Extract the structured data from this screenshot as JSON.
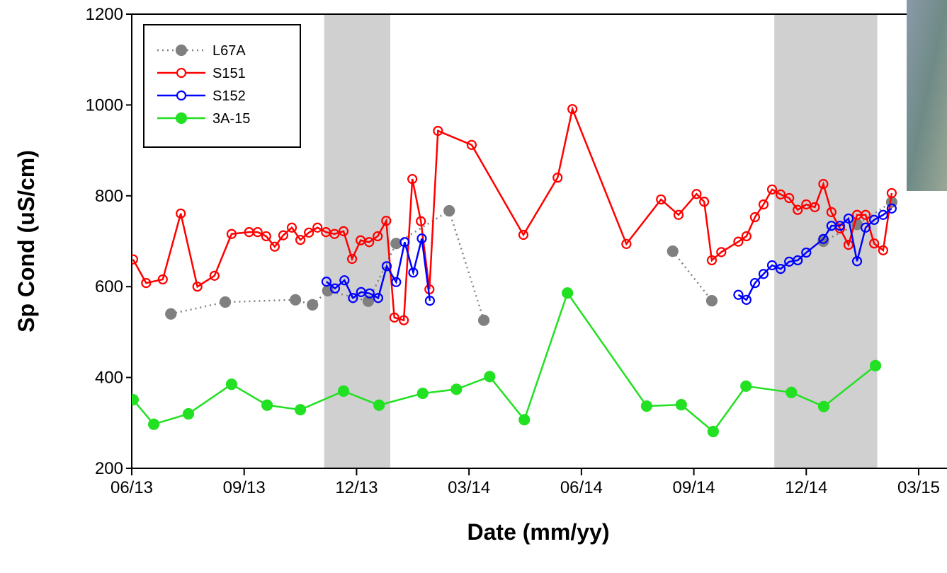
{
  "chart_data": {
    "type": "line",
    "x_label": "Date (mm/yy)",
    "y_label": "Sp Cond (uS/cm)",
    "xlim": [
      2013.417,
      2015.23
    ],
    "ylim": [
      200,
      1200
    ],
    "xticks": [
      {
        "value": 2013.417,
        "label": "06/13"
      },
      {
        "value": 2013.667,
        "label": "09/13"
      },
      {
        "value": 2013.917,
        "label": "12/13"
      },
      {
        "value": 2014.167,
        "label": "03/14"
      },
      {
        "value": 2014.417,
        "label": "06/14"
      },
      {
        "value": 2014.667,
        "label": "09/14"
      },
      {
        "value": 2014.917,
        "label": "12/14"
      },
      {
        "value": 2015.167,
        "label": "03/15"
      }
    ],
    "yticks": [
      200,
      400,
      600,
      800,
      1000,
      1200
    ],
    "shaded_regions": [
      [
        2013.845,
        2013.992
      ],
      [
        2014.846,
        2015.075
      ]
    ],
    "shade_color": "#d0d0d0",
    "series": [
      {
        "name": "L67A",
        "color": "#808080",
        "line_style": "dotted",
        "marker": "filled",
        "x": [
          2013.504,
          2013.625,
          2013.781,
          2013.819,
          2013.853,
          2013.943,
          2014.005,
          2014.123,
          2014.2,
          null,
          2014.62,
          2014.707,
          null,
          2014.955,
          2015.03,
          2015.107
        ],
        "values": [
          540,
          566,
          571,
          560,
          591,
          568,
          695,
          767,
          526,
          null,
          678,
          569,
          null,
          700,
          737,
          786
        ]
      },
      {
        "name": "S151",
        "color": "#ff0000",
        "line_style": "solid",
        "marker": "hollow",
        "x": [
          2013.42,
          2013.449,
          2013.486,
          2013.526,
          2013.563,
          2013.601,
          2013.639,
          2013.678,
          2013.697,
          2013.716,
          2013.735,
          2013.754,
          2013.773,
          2013.792,
          2013.811,
          2013.83,
          2013.849,
          2013.868,
          2013.888,
          2013.907,
          2013.926,
          2013.945,
          2013.964,
          2013.983,
          2014.001,
          2014.022,
          2014.041,
          2014.06,
          2014.079,
          2014.098,
          2014.173,
          2014.288,
          2014.364,
          2014.397,
          2014.517,
          2014.594,
          2014.633,
          2014.673,
          2014.69,
          2014.707,
          2014.728,
          2014.766,
          2014.784,
          2014.803,
          2014.822,
          2014.841,
          2014.86,
          2014.879,
          2014.898,
          2014.917,
          2014.936,
          2014.955,
          2014.973,
          2014.992,
          2015.011,
          2015.03,
          2015.049,
          2015.068,
          2015.088,
          2015.107
        ],
        "values": [
          660,
          608,
          616,
          761,
          600,
          624,
          716,
          720,
          720,
          711,
          688,
          713,
          730,
          703,
          719,
          730,
          720,
          716,
          722,
          661,
          702,
          698,
          711,
          745,
          532,
          526,
          837,
          744,
          594,
          943,
          912,
          714,
          840,
          991,
          694,
          792,
          758,
          804,
          787,
          658,
          676,
          699,
          711,
          753,
          781,
          814,
          803,
          795,
          769,
          781,
          775,
          826,
          764,
          728,
          692,
          758,
          758,
          695,
          680,
          806
        ]
      },
      {
        "name": "S152",
        "color": "#0000ff",
        "line_style": "solid",
        "marker": "hollow",
        "x": [
          2013.85,
          2013.869,
          2013.89,
          2013.909,
          2013.927,
          2013.946,
          2013.965,
          2013.984,
          2014.005,
          2014.024,
          2014.043,
          2014.062,
          2014.08,
          null,
          2014.766,
          2014.784,
          2014.803,
          2014.822,
          2014.841,
          2014.86,
          2014.879,
          2014.898,
          2014.917,
          2014.955,
          2014.973,
          2014.992,
          2015.011,
          2015.03,
          2015.049,
          2015.068,
          2015.088,
          2015.107
        ],
        "values": [
          611,
          596,
          614,
          575,
          588,
          585,
          575,
          645,
          610,
          698,
          631,
          706,
          569,
          null,
          582,
          571,
          608,
          628,
          647,
          639,
          655,
          658,
          675,
          705,
          734,
          734,
          750,
          656,
          730,
          747,
          758,
          772
        ]
      },
      {
        "name": "3A-15",
        "color": "#22e022",
        "line_style": "solid",
        "marker": "filled",
        "x": [
          2013.42,
          2013.466,
          2013.543,
          2013.639,
          2013.718,
          2013.792,
          2013.888,
          2013.967,
          2014.064,
          2014.139,
          2014.213,
          2014.29,
          2014.386,
          2014.562,
          2014.639,
          2014.71,
          2014.783,
          2014.884,
          2014.956,
          2015.071
        ],
        "values": [
          351,
          297,
          320,
          385,
          339,
          329,
          370,
          339,
          365,
          374,
          402,
          307,
          586,
          337,
          340,
          281,
          381,
          367,
          336,
          426
        ]
      }
    ]
  }
}
